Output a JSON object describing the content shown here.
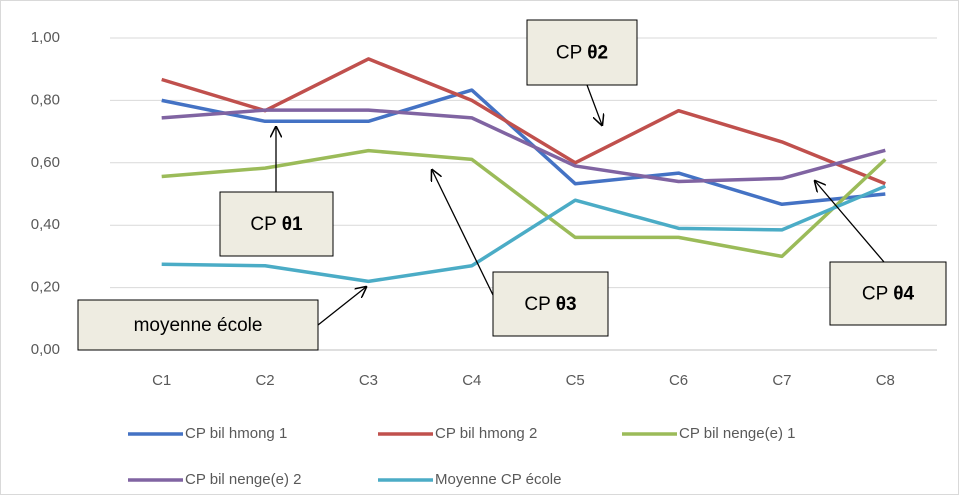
{
  "chart_data": {
    "type": "line",
    "categories": [
      "C1",
      "C2",
      "C3",
      "C4",
      "C5",
      "C6",
      "C7",
      "C8"
    ],
    "series": [
      {
        "name": "CP bil hmong 1",
        "color": "#4472c4",
        "values": [
          0.8,
          0.733,
          0.733,
          0.833,
          0.533,
          0.567,
          0.467,
          0.5
        ]
      },
      {
        "name": "CP bil hmong 2",
        "color": "#c0504d",
        "values": [
          0.867,
          0.767,
          0.933,
          0.8,
          0.6,
          0.767,
          0.667,
          0.533
        ]
      },
      {
        "name": "CP bil nenge(e) 1",
        "color": "#9bbb59",
        "values": [
          0.556,
          0.583,
          0.639,
          0.611,
          0.361,
          0.361,
          0.3,
          0.611
        ]
      },
      {
        "name": "CP bil nenge(e) 2",
        "color": "#8064a2",
        "values": [
          0.744,
          0.769,
          0.769,
          0.744,
          0.59,
          0.54,
          0.55,
          0.64
        ]
      },
      {
        "name": "Moyenne CP école",
        "color": "#4bacc6",
        "values": [
          0.275,
          0.27,
          0.22,
          0.27,
          0.48,
          0.39,
          0.385,
          0.525
        ]
      }
    ],
    "ylim": [
      0,
      1
    ],
    "yticks": [
      {
        "value": 0,
        "label": "0,00"
      },
      {
        "value": 0.2,
        "label": "0,20"
      },
      {
        "value": 0.4,
        "label": "0,40"
      },
      {
        "value": 0.6,
        "label": "0,60"
      },
      {
        "value": 0.8,
        "label": "0,80"
      },
      {
        "value": 1,
        "label": "1,00"
      }
    ],
    "grid": true,
    "legend": "bottom",
    "annotations": [
      {
        "text": "CP",
        "emphasis": "θ2"
      },
      {
        "text": "CP",
        "emphasis": "θ1"
      },
      {
        "text": "CP",
        "emphasis": "θ3"
      },
      {
        "text": "CP",
        "emphasis": "θ4"
      },
      {
        "text": "moyenne école"
      }
    ]
  }
}
